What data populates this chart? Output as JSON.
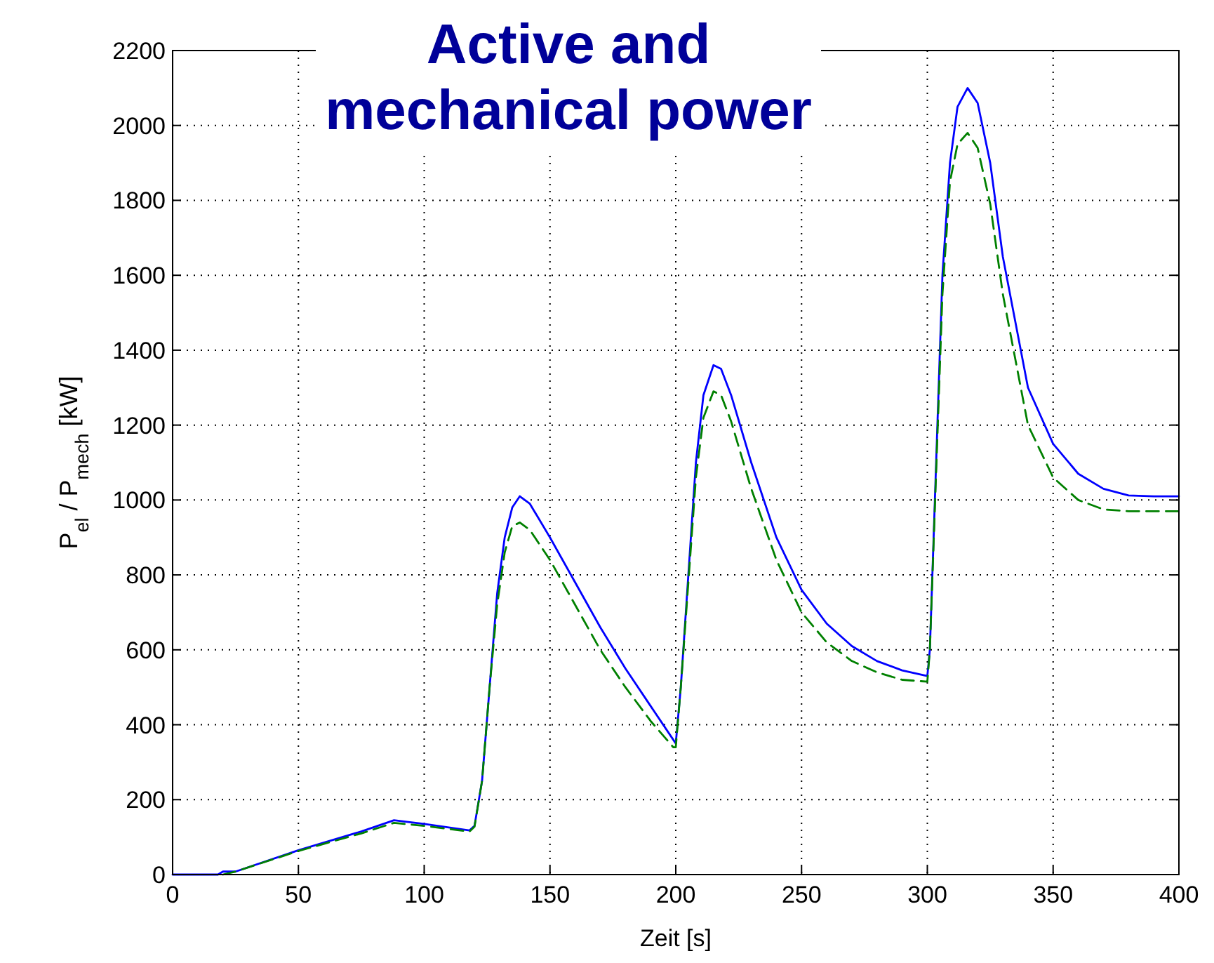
{
  "chart_data": {
    "type": "line",
    "title": "Active and mechanical power",
    "xlabel": "Zeit [s]",
    "ylabel": "P$_{el}$ / P$_{mech}$ [kW]",
    "xlim": [
      0,
      400
    ],
    "xticks": [
      0,
      50,
      100,
      150,
      200,
      250,
      300,
      350,
      400
    ],
    "ylim": [
      0,
      2200
    ],
    "yticks": [
      0,
      200,
      400,
      600,
      800,
      1000,
      1200,
      1400,
      1600,
      1800,
      2000,
      2200
    ],
    "grid": true,
    "series": [
      {
        "color": "#0000ff",
        "line_style": "solid",
        "x": [
          0,
          18,
          20,
          25,
          50,
          75,
          88,
          100,
          118,
          120,
          123,
          126,
          129,
          132,
          135,
          138,
          142,
          150,
          160,
          170,
          180,
          190,
          199,
          200,
          202,
          205,
          208,
          211,
          215,
          218,
          222,
          230,
          240,
          250,
          260,
          270,
          280,
          290,
          300,
          301,
          303,
          306,
          309,
          312,
          316,
          320,
          325,
          330,
          340,
          350,
          360,
          370,
          380,
          390,
          400
        ],
        "values": [
          0,
          0,
          8,
          8,
          65,
          115,
          145,
          135,
          118,
          130,
          250,
          500,
          750,
          900,
          980,
          1010,
          990,
          900,
          780,
          660,
          550,
          450,
          360,
          350,
          500,
          800,
          1100,
          1280,
          1360,
          1350,
          1280,
          1100,
          900,
          760,
          670,
          610,
          570,
          545,
          530,
          600,
          1000,
          1600,
          1900,
          2050,
          2100,
          2060,
          1900,
          1650,
          1300,
          1150,
          1070,
          1030,
          1012,
          1010,
          1010
        ]
      },
      {
        "color": "#008000",
        "line_style": "dashed",
        "x": [
          20,
          25,
          50,
          75,
          88,
          100,
          118,
          120,
          123,
          126,
          129,
          132,
          135,
          138,
          142,
          150,
          160,
          170,
          180,
          190,
          199,
          200,
          202,
          205,
          208,
          211,
          215,
          218,
          222,
          230,
          240,
          250,
          260,
          270,
          280,
          290,
          300,
          301,
          303,
          306,
          309,
          312,
          316,
          320,
          325,
          330,
          340,
          350,
          360,
          370,
          380,
          400
        ],
        "values": [
          0,
          8,
          63,
          110,
          138,
          130,
          115,
          128,
          250,
          500,
          720,
          860,
          930,
          940,
          920,
          840,
          720,
          600,
          500,
          410,
          340,
          340,
          500,
          780,
          1060,
          1220,
          1290,
          1280,
          1210,
          1030,
          840,
          700,
          620,
          570,
          540,
          520,
          515,
          600,
          980,
          1550,
          1850,
          1950,
          1980,
          1940,
          1790,
          1550,
          1200,
          1060,
          1000,
          975,
          970,
          970
        ]
      }
    ]
  }
}
